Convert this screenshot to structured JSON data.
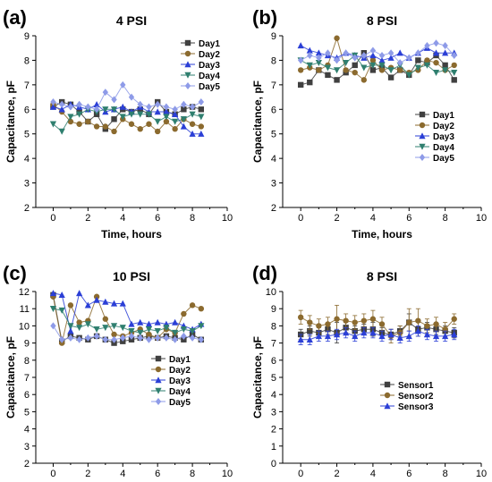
{
  "colors": {
    "Day1": "#404040",
    "Day2": "#8B6A2E",
    "Day3": "#2B3FD6",
    "Day4": "#2F7F6F",
    "Day5": "#8E9BE8",
    "Sensor1": "#404040",
    "Sensor2": "#8B6A2E",
    "Sensor3": "#2B3FD6"
  },
  "chart_data": [
    {
      "panel_label": "(a)",
      "type": "line",
      "title": "4 PSI",
      "xlabel": "Time, hours",
      "ylabel": "Capacitance, pF",
      "xlim": [
        -1,
        10
      ],
      "ylim": [
        2,
        9
      ],
      "xticks": [
        "0",
        "2",
        "4",
        "6",
        "8",
        "10"
      ],
      "yticks": [
        "2",
        "3",
        "4",
        "5",
        "6",
        "7",
        "8",
        "9"
      ],
      "legend_position": "top-right",
      "x": [
        0,
        0.5,
        1,
        1.5,
        2,
        2.5,
        3,
        3.5,
        4,
        4.5,
        5,
        5.5,
        6,
        6.5,
        7,
        7.5,
        8,
        8.5
      ],
      "series": [
        {
          "name": "Day1",
          "marker": "square",
          "values": [
            6.1,
            6.3,
            6.2,
            5.9,
            5.5,
            5.8,
            5.2,
            5.6,
            6.0,
            5.9,
            6.0,
            5.8,
            6.3,
            5.9,
            5.8,
            6.0,
            6.1,
            6.0
          ]
        },
        {
          "name": "Day2",
          "marker": "circle",
          "values": [
            6.2,
            5.9,
            5.5,
            5.4,
            5.5,
            5.3,
            5.3,
            5.1,
            5.6,
            5.4,
            5.2,
            5.4,
            5.1,
            5.5,
            5.2,
            5.6,
            5.4,
            5.3
          ]
        },
        {
          "name": "Day3",
          "marker": "triangle-up",
          "values": [
            6.1,
            6.0,
            6.2,
            6.1,
            6.0,
            6.2,
            5.9,
            6.0,
            6.1,
            5.9,
            6.1,
            5.9,
            5.9,
            5.9,
            5.8,
            5.3,
            5.0,
            5.0
          ]
        },
        {
          "name": "Day4",
          "marker": "triangle-down",
          "values": [
            5.4,
            5.1,
            5.7,
            5.8,
            6.0,
            5.9,
            6.0,
            6.0,
            5.7,
            5.8,
            5.8,
            5.8,
            5.5,
            5.7,
            5.5,
            5.6,
            5.8,
            5.7
          ]
        },
        {
          "name": "Day5",
          "marker": "diamond",
          "values": [
            6.3,
            6.2,
            6.1,
            6.2,
            6.1,
            6.0,
            6.7,
            6.4,
            7.0,
            6.5,
            6.2,
            6.1,
            6.2,
            6.1,
            6.0,
            6.2,
            6.1,
            6.3
          ]
        }
      ]
    },
    {
      "panel_label": "(b)",
      "type": "line",
      "title": "8 PSI",
      "xlabel": "Time, hours",
      "ylabel": "Capacitance, pF",
      "xlim": [
        -1,
        10
      ],
      "ylim": [
        2,
        9
      ],
      "xticks": [
        "0",
        "2",
        "4",
        "6",
        "8",
        "10"
      ],
      "yticks": [
        "2",
        "3",
        "4",
        "5",
        "6",
        "7",
        "8",
        "9"
      ],
      "legend_position": "bottom-right",
      "x": [
        0,
        0.5,
        1,
        1.5,
        2,
        2.5,
        3,
        3.5,
        4,
        4.5,
        5,
        5.5,
        6,
        6.5,
        7,
        7.5,
        8,
        8.5
      ],
      "series": [
        {
          "name": "Day1",
          "marker": "square",
          "values": [
            7.0,
            7.1,
            7.6,
            7.4,
            7.2,
            7.5,
            7.8,
            8.3,
            7.6,
            7.7,
            7.3,
            7.6,
            7.4,
            8.0,
            7.9,
            8.2,
            7.8,
            7.2
          ]
        },
        {
          "name": "Day2",
          "marker": "circle",
          "values": [
            7.6,
            7.7,
            7.6,
            7.8,
            8.9,
            7.6,
            7.5,
            7.2,
            8.0,
            7.6,
            7.7,
            7.6,
            7.5,
            7.6,
            8.0,
            7.9,
            7.6,
            7.8
          ]
        },
        {
          "name": "Day3",
          "marker": "triangle-up",
          "values": [
            8.6,
            8.4,
            8.3,
            8.2,
            8.1,
            8.3,
            8.2,
            8.1,
            8.2,
            8.0,
            8.1,
            8.3,
            8.1,
            8.3,
            8.5,
            8.3,
            8.3,
            8.3
          ]
        },
        {
          "name": "Day4",
          "marker": "triangle-down",
          "values": [
            8.0,
            7.8,
            7.9,
            7.7,
            7.6,
            7.9,
            8.2,
            7.7,
            7.8,
            7.8,
            7.6,
            7.8,
            7.4,
            7.7,
            7.8,
            7.5,
            7.6,
            7.5
          ]
        },
        {
          "name": "Day5",
          "marker": "diamond",
          "values": [
            8.0,
            8.2,
            8.1,
            8.3,
            8.0,
            8.3,
            8.1,
            8.2,
            8.4,
            8.2,
            8.3,
            7.9,
            8.1,
            8.3,
            8.6,
            8.7,
            8.6,
            8.2
          ]
        }
      ]
    },
    {
      "panel_label": "(c)",
      "type": "line",
      "title": "10 PSI",
      "xlabel": "Time, hours",
      "ylabel": "Capacitance, pF",
      "xlim": [
        -1,
        10
      ],
      "ylim": [
        2,
        12
      ],
      "xticks": [
        "0",
        "2",
        "4",
        "6",
        "8",
        "10"
      ],
      "yticks": [
        "2",
        "3",
        "4",
        "5",
        "6",
        "7",
        "8",
        "9",
        "10",
        "11",
        "12"
      ],
      "legend_position": "bottom-right",
      "x": [
        0,
        0.5,
        1,
        1.5,
        2,
        2.5,
        3,
        3.5,
        4,
        4.5,
        5,
        5.5,
        6,
        6.5,
        7,
        7.5,
        8,
        8.5
      ],
      "series": [
        {
          "name": "Day1",
          "marker": "square",
          "values": [
            11.8,
            9.1,
            9.4,
            9.3,
            9.2,
            9.4,
            9.2,
            9.0,
            9.1,
            9.2,
            9.3,
            9.4,
            9.3,
            9.4,
            9.3,
            9.2,
            9.5,
            9.2
          ]
        },
        {
          "name": "Day2",
          "marker": "circle",
          "values": [
            11.7,
            9.0,
            11.2,
            10.2,
            10.3,
            11.7,
            10.4,
            9.5,
            9.4,
            9.6,
            9.8,
            9.5,
            9.3,
            9.8,
            9.6,
            10.7,
            11.2,
            11.0
          ]
        },
        {
          "name": "Day3",
          "marker": "triangle-up",
          "values": [
            11.9,
            11.8,
            9.7,
            11.9,
            11.2,
            11.5,
            11.4,
            11.3,
            11.3,
            10.1,
            10.2,
            10.1,
            10.2,
            10.1,
            10.2,
            10.0,
            9.8,
            10.1
          ]
        },
        {
          "name": "Day4",
          "marker": "triangle-down",
          "values": [
            11.0,
            10.9,
            10.0,
            9.9,
            10.1,
            9.8,
            9.9,
            10.0,
            9.9,
            9.7,
            9.6,
            9.8,
            9.7,
            9.9,
            9.6,
            9.8,
            9.7,
            10.0
          ]
        },
        {
          "name": "Day5",
          "marker": "diamond",
          "values": [
            10.0,
            9.2,
            9.3,
            9.2,
            9.3,
            9.4,
            9.2,
            9.2,
            9.3,
            9.4,
            9.3,
            9.2,
            9.3,
            9.3,
            9.2,
            9.4,
            9.3,
            9.2
          ]
        }
      ]
    },
    {
      "panel_label": "(d)",
      "type": "line",
      "title": "8 PSI",
      "xlabel": "Time, hours",
      "ylabel": "Capacitance, pF",
      "xlim": [
        -1,
        10
      ],
      "ylim": [
        0,
        10
      ],
      "xticks": [
        "0",
        "2",
        "4",
        "6",
        "8",
        "10"
      ],
      "yticks": [
        "0",
        "1",
        "2",
        "3",
        "4",
        "5",
        "6",
        "7",
        "8",
        "9",
        "10"
      ],
      "legend_position": "bottom-right",
      "error_bars": true,
      "x": [
        0,
        0.5,
        1,
        1.5,
        2,
        2.5,
        3,
        3.5,
        4,
        4.5,
        5,
        5.5,
        6,
        6.5,
        7,
        7.5,
        8,
        8.5
      ],
      "series": [
        {
          "name": "Sensor1",
          "marker": "square",
          "values": [
            7.5,
            7.7,
            7.6,
            7.8,
            7.6,
            7.9,
            7.7,
            7.8,
            7.8,
            7.6,
            7.5,
            7.7,
            8.2,
            7.8,
            7.9,
            7.8,
            7.7,
            7.6
          ],
          "err": [
            0.3,
            0.3,
            0.3,
            0.3,
            0.6,
            0.3,
            0.3,
            0.3,
            0.4,
            0.3,
            0.3,
            0.3,
            0.5,
            0.4,
            0.3,
            0.3,
            0.3,
            0.3
          ]
        },
        {
          "name": "Sensor2",
          "marker": "circle",
          "values": [
            8.5,
            8.2,
            8.0,
            8.1,
            8.4,
            8.3,
            8.2,
            8.3,
            8.4,
            8.1,
            7.4,
            7.6,
            8.2,
            8.3,
            8.0,
            8.1,
            7.8,
            8.4
          ],
          "err": [
            0.4,
            0.4,
            0.4,
            0.4,
            0.8,
            0.4,
            0.4,
            0.4,
            0.5,
            0.4,
            0.4,
            0.4,
            0.8,
            0.7,
            0.4,
            0.4,
            0.4,
            0.3
          ]
        },
        {
          "name": "Sensor3",
          "marker": "triangle-up",
          "values": [
            7.2,
            7.2,
            7.4,
            7.4,
            7.5,
            7.6,
            7.4,
            7.6,
            7.6,
            7.4,
            7.5,
            7.3,
            7.4,
            7.7,
            7.5,
            7.4,
            7.4,
            7.5
          ],
          "err": [
            0.3,
            0.3,
            0.3,
            0.3,
            0.3,
            0.3,
            0.3,
            0.3,
            0.3,
            0.3,
            0.3,
            0.3,
            0.3,
            0.3,
            0.3,
            0.3,
            0.3,
            0.3
          ]
        }
      ]
    }
  ]
}
